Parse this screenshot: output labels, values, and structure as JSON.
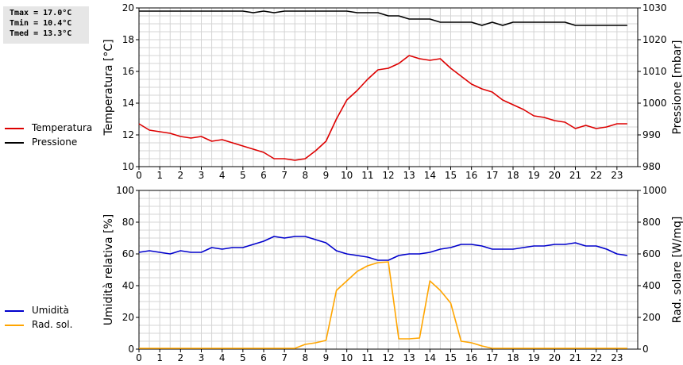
{
  "stats": {
    "tmax": "Tmax = 17.0°C",
    "tmin": "Tmin = 10.4°C",
    "tmed": "Tmed = 13.3°C"
  },
  "legend_top": [
    {
      "label": "Temperatura",
      "color": "#dd0000"
    },
    {
      "label": "Pressione",
      "color": "#000000"
    }
  ],
  "legend_bottom": [
    {
      "label": "Umidità",
      "color": "#0000cc"
    },
    {
      "label": "Rad. sol.",
      "color": "#ffa500"
    }
  ],
  "chart_data": [
    {
      "type": "line",
      "xlim": [
        0,
        24
      ],
      "x_ticks": [
        "0",
        "1",
        "2",
        "3",
        "4",
        "5",
        "6",
        "7",
        "8",
        "9",
        "10",
        "11",
        "12",
        "13",
        "14",
        "15",
        "16",
        "17",
        "18",
        "19",
        "20",
        "21",
        "22",
        "23"
      ],
      "ylabel_left": "Temperatura [°C]",
      "ylabel_right": "Pressione [mbar]",
      "ylim_left": [
        10,
        20
      ],
      "ylim_right": [
        980,
        1030
      ],
      "y_ticks_left": [
        "10",
        "12",
        "14",
        "16",
        "18",
        "20"
      ],
      "y_ticks_right": [
        "980",
        "990",
        "1000",
        "1010",
        "1020",
        "1030"
      ],
      "grid": true,
      "series": [
        {
          "name": "Temperatura",
          "axis": "left",
          "color": "#dd0000",
          "x": [
            0,
            0.5,
            1,
            1.5,
            2,
            2.5,
            3,
            3.5,
            4,
            4.5,
            5,
            5.5,
            6,
            6.5,
            7,
            7.5,
            8,
            8.5,
            9,
            9.5,
            10,
            10.5,
            11,
            11.5,
            12,
            12.5,
            13,
            13.5,
            14,
            14.5,
            15,
            15.5,
            16,
            16.5,
            17,
            17.5,
            18,
            18.5,
            19,
            19.5,
            20,
            20.5,
            21,
            21.5,
            22,
            22.5,
            23,
            23.5
          ],
          "values": [
            12.7,
            12.3,
            12.2,
            12.1,
            11.9,
            11.8,
            11.9,
            11.6,
            11.7,
            11.5,
            11.3,
            11.1,
            10.9,
            10.5,
            10.5,
            10.4,
            10.5,
            11.0,
            11.6,
            13.0,
            14.2,
            14.8,
            15.5,
            16.1,
            16.2,
            16.5,
            17.0,
            16.8,
            16.7,
            16.8,
            16.2,
            15.7,
            15.2,
            14.9,
            14.7,
            14.2,
            13.9,
            13.6,
            13.2,
            13.1,
            12.9,
            12.8,
            12.4,
            12.6,
            12.4,
            12.5,
            12.7,
            12.7
          ]
        },
        {
          "name": "Pressione",
          "axis": "right",
          "color": "#000000",
          "x": [
            0,
            1,
            2,
            3,
            4,
            5,
            5.5,
            6,
            6.5,
            7,
            8,
            9,
            10,
            10.5,
            11,
            11.5,
            12,
            12.5,
            13,
            13.5,
            14,
            14.5,
            15,
            16,
            16.5,
            17,
            17.5,
            18,
            19,
            20,
            20.5,
            21,
            21.5,
            22,
            23,
            23.5
          ],
          "values": [
            1029,
            1029,
            1029,
            1029,
            1029,
            1029,
            1028.5,
            1029,
            1028.5,
            1029,
            1029,
            1029,
            1029,
            1028.5,
            1028.5,
            1028.5,
            1027.5,
            1027.5,
            1026.5,
            1026.5,
            1026.5,
            1025.5,
            1025.5,
            1025.5,
            1024.5,
            1025.5,
            1024.5,
            1025.5,
            1025.5,
            1025.5,
            1025.5,
            1024.5,
            1024.5,
            1024.5,
            1024.5,
            1024.5
          ]
        }
      ]
    },
    {
      "type": "line",
      "xlim": [
        0,
        24
      ],
      "x_ticks": [
        "0",
        "1",
        "2",
        "3",
        "4",
        "5",
        "6",
        "7",
        "8",
        "9",
        "10",
        "11",
        "12",
        "13",
        "14",
        "15",
        "16",
        "17",
        "18",
        "19",
        "20",
        "21",
        "22",
        "23"
      ],
      "ylabel_left": "Umidità relativa [%]",
      "ylabel_right": "Rad. solare [W/mq]",
      "ylim_left": [
        0,
        100
      ],
      "ylim_right": [
        0,
        1000
      ],
      "y_ticks_left": [
        "0",
        "20",
        "40",
        "60",
        "80",
        "100"
      ],
      "y_ticks_right": [
        "0",
        "200",
        "400",
        "600",
        "800",
        "1000"
      ],
      "grid": true,
      "series": [
        {
          "name": "Umidità",
          "axis": "left",
          "color": "#0000cc",
          "x": [
            0,
            0.5,
            1,
            1.5,
            2,
            2.5,
            3,
            3.5,
            4,
            4.5,
            5,
            5.5,
            6,
            6.5,
            7,
            7.5,
            8,
            8.5,
            9,
            9.5,
            10,
            10.5,
            11,
            11.5,
            12,
            12.5,
            13,
            13.5,
            14,
            14.5,
            15,
            15.5,
            16,
            16.5,
            17,
            17.5,
            18,
            18.5,
            19,
            19.5,
            20,
            20.5,
            21,
            21.5,
            22,
            22.5,
            23,
            23.5
          ],
          "values": [
            61,
            62,
            61,
            60,
            62,
            61,
            61,
            64,
            63,
            64,
            64,
            66,
            68,
            71,
            70,
            71,
            71,
            69,
            67,
            62,
            60,
            59,
            58,
            56,
            56,
            59,
            60,
            60,
            61,
            63,
            64,
            66,
            66,
            65,
            63,
            63,
            63,
            64,
            65,
            65,
            66,
            66,
            67,
            65,
            65,
            63,
            60,
            59
          ]
        },
        {
          "name": "Rad. sol.",
          "axis": "right",
          "color": "#ffa500",
          "x": [
            0,
            1,
            2,
            3,
            4,
            5,
            6,
            7,
            7.5,
            8,
            8.5,
            9,
            9.5,
            10,
            10.5,
            11,
            11.5,
            12,
            12.5,
            13,
            13.5,
            14,
            14.5,
            15,
            15.5,
            16,
            16.5,
            17,
            18,
            19,
            20,
            21,
            22,
            23,
            23.5
          ],
          "values": [
            5,
            5,
            5,
            5,
            5,
            5,
            5,
            5,
            5,
            30,
            40,
            55,
            370,
            430,
            490,
            525,
            545,
            550,
            65,
            65,
            70,
            430,
            370,
            290,
            50,
            40,
            20,
            5,
            5,
            5,
            5,
            5,
            5,
            5,
            5
          ]
        }
      ]
    }
  ]
}
